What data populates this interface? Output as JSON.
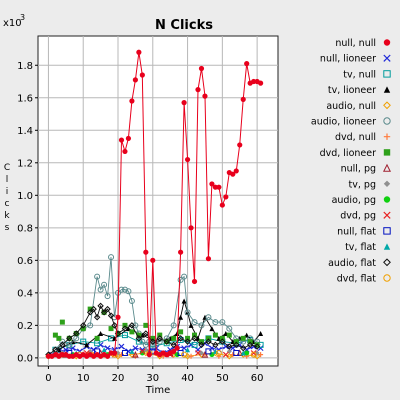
{
  "chart_data": {
    "type": "line",
    "title": "N Clicks",
    "xlabel": "Time",
    "ylabel": "Clicks",
    "y_multiplier_label": "x10",
    "y_multiplier_exp": "3",
    "xlim": [
      -3,
      66
    ],
    "ylim": [
      -0.05,
      1.98
    ],
    "x_ticks": [
      0,
      10,
      20,
      30,
      40,
      50,
      60
    ],
    "y_ticks": [
      0.0,
      0.2,
      0.4,
      0.6,
      0.8,
      1.0,
      1.2,
      1.4,
      1.6,
      1.8
    ],
    "y_tick_labels": [
      "0.0",
      "0.2",
      "0.4",
      "0.6",
      "0.8",
      "1.0",
      "1.2",
      "1.4",
      "1.6",
      "1.8"
    ],
    "grid": true,
    "legend_position": "right",
    "series": [
      {
        "name": "null, null",
        "color": "#e8001c",
        "marker": "dot",
        "line": true,
        "x": [
          0,
          1,
          2,
          3,
          4,
          5,
          6,
          7,
          8,
          9,
          10,
          11,
          12,
          13,
          14,
          15,
          16,
          17,
          18,
          19,
          20,
          21,
          22,
          23,
          24,
          25,
          26,
          27,
          28,
          29,
          30,
          31,
          32,
          33,
          34,
          35,
          36,
          37,
          38,
          39,
          40,
          41,
          42,
          43,
          44,
          45,
          46,
          47,
          48,
          49,
          50,
          51,
          52,
          53,
          54,
          55,
          56,
          57,
          58,
          59,
          60,
          61
        ],
        "y": [
          0.01,
          0.01,
          0.02,
          0.01,
          0.02,
          0.02,
          0.01,
          0.01,
          0.02,
          0.01,
          0.02,
          0.01,
          0.02,
          0.01,
          0.02,
          0.01,
          0.02,
          0.01,
          0.03,
          0.03,
          0.25,
          1.34,
          1.27,
          1.35,
          1.58,
          1.71,
          1.88,
          1.74,
          0.65,
          0.02,
          0.6,
          0.03,
          0.02,
          0.03,
          0.02,
          0.03,
          0.04,
          0.06,
          0.65,
          1.57,
          1.22,
          0.8,
          0.47,
          1.65,
          1.78,
          1.61,
          0.61,
          1.07,
          1.05,
          1.05,
          0.94,
          0.99,
          1.14,
          1.13,
          1.15,
          1.31,
          1.59,
          1.81,
          1.69,
          1.7,
          1.7,
          1.69
        ]
      },
      {
        "name": "null, lioneer",
        "color": "#1e28d8",
        "marker": "x",
        "line": true,
        "x": [
          1,
          3,
          5,
          7,
          9,
          11,
          13,
          15,
          17,
          19,
          21,
          23,
          25,
          27,
          29,
          31,
          33,
          35,
          37,
          39,
          41,
          43,
          45,
          47,
          49,
          51,
          53,
          55,
          57,
          59,
          61
        ],
        "y": [
          0.02,
          0.04,
          0.05,
          0.06,
          0.04,
          0.07,
          0.05,
          0.08,
          0.06,
          0.05,
          0.07,
          0.04,
          0.06,
          0.05,
          0.04,
          0.06,
          0.03,
          0.05,
          0.07,
          0.06,
          0.08,
          0.05,
          0.09,
          0.06,
          0.05,
          0.07,
          0.06,
          0.08,
          0.05,
          0.07,
          0.06
        ]
      },
      {
        "name": "tv, null",
        "color": "#009c9c",
        "marker": "square-open",
        "line": true,
        "x": [
          2,
          6,
          10,
          14,
          18,
          22,
          26,
          30,
          34,
          38,
          42,
          46,
          50,
          54,
          58,
          61
        ],
        "y": [
          0.05,
          0.08,
          0.1,
          0.09,
          0.12,
          0.14,
          0.1,
          0.07,
          0.09,
          0.11,
          0.08,
          0.12,
          0.1,
          0.09,
          0.11,
          0.08
        ]
      },
      {
        "name": "tv, lioneer",
        "color": "#000000",
        "marker": "triangle",
        "line": true,
        "x": [
          3,
          7,
          11,
          15,
          19,
          23,
          27,
          31,
          35,
          37,
          38,
          39,
          40,
          41,
          43,
          45,
          47,
          49,
          51,
          53,
          55,
          57,
          59,
          61
        ],
        "y": [
          0.05,
          0.1,
          0.08,
          0.15,
          0.12,
          0.18,
          0.14,
          0.1,
          0.12,
          0.15,
          0.25,
          0.35,
          0.28,
          0.2,
          0.12,
          0.25,
          0.18,
          0.12,
          0.15,
          0.1,
          0.12,
          0.14,
          0.1,
          0.15
        ]
      },
      {
        "name": "audio, null",
        "color": "#f0a000",
        "marker": "diamond-open",
        "line": true,
        "x": [
          0,
          4,
          8,
          12,
          16,
          20,
          24,
          28,
          32,
          36,
          40,
          44,
          48,
          52,
          56,
          60
        ],
        "y": [
          0.01,
          0.02,
          0.01,
          0.03,
          0.02,
          0.01,
          0.02,
          0.03,
          0.01,
          0.02,
          0.01,
          0.02,
          0.03,
          0.01,
          0.02,
          0.01
        ]
      },
      {
        "name": "audio, lioneer",
        "color": "#5a8a8c",
        "marker": "circle-open",
        "line": true,
        "x": [
          2,
          4,
          6,
          8,
          10,
          12,
          14,
          15,
          16,
          17,
          18,
          19,
          20,
          21,
          22,
          23,
          24,
          25,
          26,
          27,
          28,
          29,
          30,
          32,
          34,
          36,
          38,
          39,
          40,
          42,
          44,
          46,
          48,
          50,
          52,
          54,
          56,
          58,
          60
        ],
        "y": [
          0.05,
          0.1,
          0.08,
          0.12,
          0.18,
          0.2,
          0.5,
          0.42,
          0.45,
          0.38,
          0.62,
          0.25,
          0.4,
          0.42,
          0.42,
          0.41,
          0.35,
          0.2,
          0.15,
          0.1,
          0.08,
          0.1,
          0.08,
          0.1,
          0.12,
          0.2,
          0.48,
          0.5,
          0.28,
          0.22,
          0.2,
          0.25,
          0.22,
          0.22,
          0.18,
          0.12,
          0.1,
          0.12,
          0.1
        ]
      },
      {
        "name": "dvd, null",
        "color": "#ff7a3c",
        "marker": "plus",
        "line": false,
        "x": [
          1,
          5,
          9,
          13,
          17,
          21,
          25,
          29,
          33,
          37,
          41,
          45,
          49,
          53,
          57,
          61
        ],
        "y": [
          0.01,
          0.02,
          0.01,
          0.02,
          0.01,
          0.02,
          0.01,
          0.02,
          0.01,
          0.02,
          0.01,
          0.02,
          0.01,
          0.02,
          0.01,
          0.02
        ]
      },
      {
        "name": "dvd, lioneer",
        "color": "#2ea01a",
        "marker": "square",
        "line": false,
        "x": [
          2,
          3,
          4,
          6,
          8,
          10,
          12,
          14,
          16,
          18,
          20,
          22,
          24,
          26,
          28,
          30,
          32,
          34,
          36,
          38,
          40,
          42,
          44,
          46,
          48,
          50,
          52,
          54,
          56,
          58,
          60
        ],
        "y": [
          0.14,
          0.12,
          0.22,
          0.12,
          0.15,
          0.18,
          0.3,
          0.12,
          0.28,
          0.18,
          0.15,
          0.2,
          0.16,
          0.14,
          0.2,
          0.12,
          0.14,
          0.1,
          0.12,
          0.16,
          0.12,
          0.14,
          0.1,
          0.12,
          0.14,
          0.12,
          0.14,
          0.1,
          0.12,
          0.1,
          0.08
        ]
      },
      {
        "name": "null, pg",
        "color": "#a02030",
        "marker": "triangle-open",
        "line": false,
        "x": [
          5,
          15,
          25,
          35,
          45,
          55
        ],
        "y": [
          0.02,
          0.03,
          0.02,
          0.03,
          0.02,
          0.03
        ]
      },
      {
        "name": "tv, pg",
        "color": "#909090",
        "marker": "diamond",
        "line": false,
        "x": [
          4,
          12,
          20,
          28,
          36,
          44,
          52,
          60
        ],
        "y": [
          0.03,
          0.04,
          0.03,
          0.05,
          0.04,
          0.03,
          0.04,
          0.03
        ]
      },
      {
        "name": "audio, pg",
        "color": "#10d010",
        "marker": "dot",
        "line": false,
        "x": [
          7,
          17,
          27,
          37,
          47,
          57
        ],
        "y": [
          0.02,
          0.02,
          0.03,
          0.02,
          0.02,
          0.03
        ]
      },
      {
        "name": "dvd, pg",
        "color": "#e82020",
        "marker": "x",
        "line": false,
        "x": [
          3,
          11,
          19,
          27,
          35,
          43,
          51,
          59
        ],
        "y": [
          0.02,
          0.03,
          0.02,
          0.04,
          0.02,
          0.03,
          0.02,
          0.03
        ]
      },
      {
        "name": "null, flat",
        "color": "#0010c0",
        "marker": "square-open",
        "line": false,
        "x": [
          6,
          14,
          22,
          30,
          38,
          46,
          54
        ],
        "y": [
          0.03,
          0.04,
          0.03,
          0.04,
          0.03,
          0.04,
          0.03
        ]
      },
      {
        "name": "tv, flat",
        "color": "#00a8a8",
        "marker": "triangle",
        "line": false,
        "x": [
          8,
          16,
          24,
          32,
          40,
          48,
          56
        ],
        "y": [
          0.03,
          0.05,
          0.04,
          0.03,
          0.05,
          0.04,
          0.03
        ]
      },
      {
        "name": "audio, flat",
        "color": "#101010",
        "marker": "diamond-open",
        "line": true,
        "x": [
          0,
          2,
          4,
          6,
          8,
          10,
          12,
          13,
          14,
          15,
          16,
          17,
          18,
          19,
          20,
          22,
          24,
          26,
          28,
          30,
          32,
          34,
          36,
          38,
          40,
          42,
          44,
          46,
          48,
          50,
          52,
          54,
          56,
          58,
          60
        ],
        "y": [
          0.02,
          0.05,
          0.08,
          0.12,
          0.15,
          0.2,
          0.28,
          0.3,
          0.25,
          0.32,
          0.28,
          0.3,
          0.26,
          0.2,
          0.15,
          0.18,
          0.2,
          0.12,
          0.15,
          0.1,
          0.12,
          0.1,
          0.08,
          0.12,
          0.1,
          0.12,
          0.08,
          0.1,
          0.08,
          0.1,
          0.07,
          0.08,
          0.06,
          0.08,
          0.07
        ]
      },
      {
        "name": "dvd, flat",
        "color": "#f0a000",
        "marker": "circle-open",
        "line": false,
        "x": [
          9,
          19,
          29,
          39,
          49,
          59
        ],
        "y": [
          0.02,
          0.02,
          0.03,
          0.02,
          0.03,
          0.02
        ]
      }
    ]
  }
}
